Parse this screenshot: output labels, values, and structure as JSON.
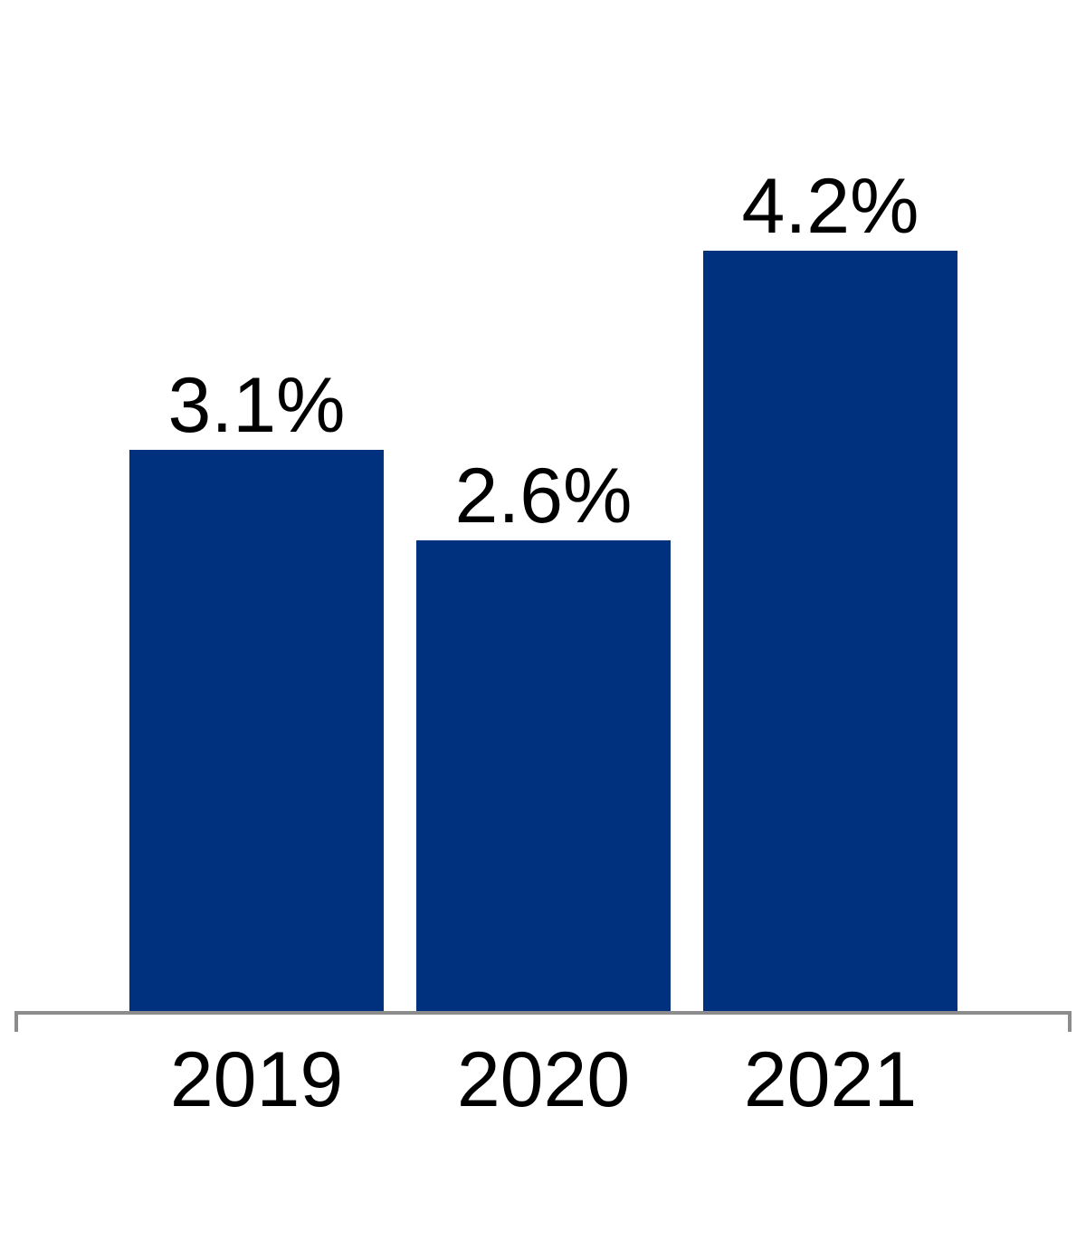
{
  "chart_data": {
    "type": "bar",
    "categories": [
      "2019",
      "2020",
      "2021"
    ],
    "values": [
      3.1,
      2.6,
      4.2
    ],
    "value_labels": [
      "3.1%",
      "2.6%",
      "4.2%"
    ],
    "title": "",
    "xlabel": "",
    "ylabel": "",
    "ylim": [
      0,
      5.6
    ],
    "grid": false,
    "legend": "none",
    "colors": {
      "bar": "#00317f",
      "axis": "#8c8c8c",
      "text": "#000000"
    }
  }
}
